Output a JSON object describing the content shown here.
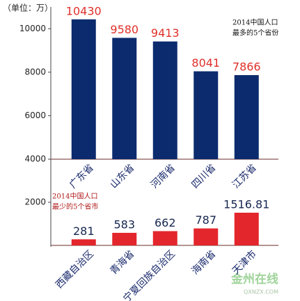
{
  "chart_data": [
    {
      "type": "bar",
      "ylabel": "（单位：万）",
      "annotation": [
        "2014中国人口",
        "最多的5个省份"
      ],
      "categories": [
        "广东省",
        "山东省",
        "河南省",
        "四川省",
        "江苏省"
      ],
      "values": [
        10430,
        9580,
        9413,
        8041,
        7866
      ],
      "color": "#0c2b6e",
      "label_color": "#e0302a",
      "ylim": [
        4000,
        11000
      ],
      "yticks": [
        4000,
        6000,
        8000,
        10000
      ]
    },
    {
      "type": "bar",
      "annotation": [
        "2014中国人口",
        "最少的5个省市"
      ],
      "categories": [
        "西藏自治区",
        "青海省",
        "宁夏回族自治区",
        "海南省",
        "天津市"
      ],
      "values": [
        281,
        583,
        662,
        787,
        1516.81
      ],
      "color": "#e3262b",
      "label_color": "#16264f",
      "ylim": [
        0,
        4000
      ],
      "yticks": [
        2000
      ]
    }
  ],
  "watermark": {
    "text": "金州在线",
    "url": "QXNZX.COM"
  }
}
